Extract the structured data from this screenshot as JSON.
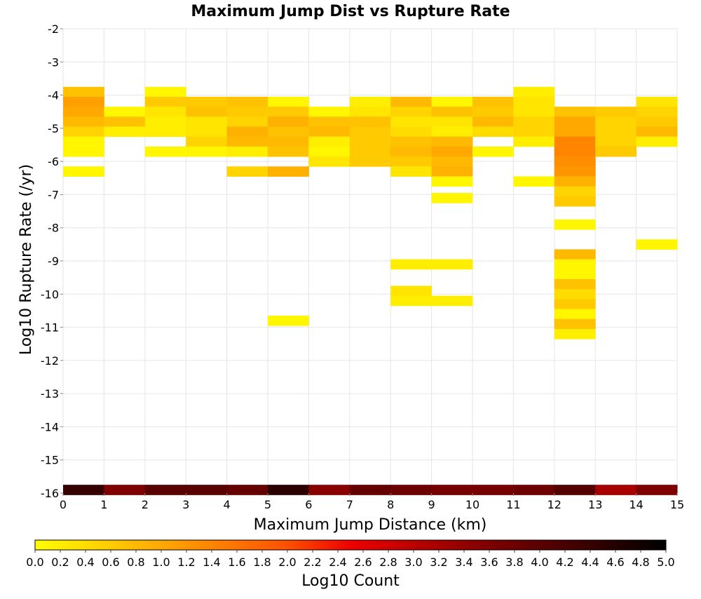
{
  "chart_data": {
    "type": "heatmap",
    "title": "Maximum Jump Dist vs Rupture Rate",
    "xlabel": "Maximum Jump Distance (km)",
    "ylabel": "Log10 Rupture Rate (/yr)",
    "xlim": [
      0,
      15
    ],
    "ylim": [
      -16,
      -2
    ],
    "x_ticks": [
      "0",
      "1",
      "2",
      "3",
      "4",
      "5",
      "6",
      "7",
      "8",
      "9",
      "10",
      "11",
      "12",
      "13",
      "14",
      "15"
    ],
    "y_ticks": [
      "-2",
      "-3",
      "-4",
      "-5",
      "-6",
      "-7",
      "-8",
      "-9",
      "-10",
      "-11",
      "-12",
      "-13",
      "-14",
      "-15",
      "-16"
    ],
    "x_bin_width": 1,
    "y_bin_height": 0.3,
    "grid": true,
    "colorbar": {
      "label": "Log10 Count",
      "range": [
        0,
        5
      ],
      "ticks": [
        "0.0",
        "0.2",
        "0.4",
        "0.6",
        "0.8",
        "1.0",
        "1.2",
        "1.4",
        "1.6",
        "1.8",
        "2.0",
        "2.2",
        "2.4",
        "2.6",
        "2.8",
        "3.0",
        "3.2",
        "3.4",
        "3.6",
        "3.8",
        "4.0",
        "4.2",
        "4.4",
        "4.6",
        "4.8",
        "5.0"
      ],
      "colors": [
        "#ffff00",
        "#ffa800",
        "#ff5000",
        "#ee0000",
        "#880000",
        "#000000"
      ],
      "placement": "bottom"
    },
    "cells": [
      {
        "x": 0,
        "y": -3.9,
        "v": 0.7
      },
      {
        "x": 0,
        "y": -4.2,
        "v": 1.1
      },
      {
        "x": 0,
        "y": -4.5,
        "v": 1.0
      },
      {
        "x": 0,
        "y": -4.8,
        "v": 0.8
      },
      {
        "x": 0,
        "y": -5.1,
        "v": 0.5
      },
      {
        "x": 0,
        "y": -5.4,
        "v": 0.1
      },
      {
        "x": 0,
        "y": -5.7,
        "v": 0.1
      },
      {
        "x": 0,
        "y": -6.3,
        "v": 0.1
      },
      {
        "x": 1,
        "y": -4.5,
        "v": 0.1
      },
      {
        "x": 1,
        "y": -4.8,
        "v": 0.7
      },
      {
        "x": 1,
        "y": -5.1,
        "v": 0.2
      },
      {
        "x": 2,
        "y": -3.9,
        "v": 0.1
      },
      {
        "x": 2,
        "y": -4.2,
        "v": 0.6
      },
      {
        "x": 2,
        "y": -4.5,
        "v": 0.3
      },
      {
        "x": 2,
        "y": -4.8,
        "v": 0.2
      },
      {
        "x": 2,
        "y": -5.1,
        "v": 0.2
      },
      {
        "x": 2,
        "y": -5.7,
        "v": 0.1
      },
      {
        "x": 3,
        "y": -4.2,
        "v": 0.6
      },
      {
        "x": 3,
        "y": -4.5,
        "v": 0.7
      },
      {
        "x": 3,
        "y": -4.8,
        "v": 0.3
      },
      {
        "x": 3,
        "y": -5.1,
        "v": 0.3
      },
      {
        "x": 3,
        "y": -5.4,
        "v": 0.5
      },
      {
        "x": 3,
        "y": -5.7,
        "v": 0.1
      },
      {
        "x": 4,
        "y": -4.2,
        "v": 0.7
      },
      {
        "x": 4,
        "y": -4.5,
        "v": 0.6
      },
      {
        "x": 4,
        "y": -4.8,
        "v": 0.5
      },
      {
        "x": 4,
        "y": -5.1,
        "v": 0.9
      },
      {
        "x": 4,
        "y": -5.4,
        "v": 0.8
      },
      {
        "x": 4,
        "y": -5.7,
        "v": 0.2
      },
      {
        "x": 4,
        "y": -6.3,
        "v": 0.5
      },
      {
        "x": 5,
        "y": -4.2,
        "v": 0.1
      },
      {
        "x": 5,
        "y": -4.5,
        "v": 0.6
      },
      {
        "x": 5,
        "y": -4.8,
        "v": 0.9
      },
      {
        "x": 5,
        "y": -5.1,
        "v": 0.7
      },
      {
        "x": 5,
        "y": -5.4,
        "v": 0.8
      },
      {
        "x": 5,
        "y": -5.7,
        "v": 0.7
      },
      {
        "x": 5,
        "y": -6.3,
        "v": 0.9
      },
      {
        "x": 5,
        "y": -10.8,
        "v": 0.1
      },
      {
        "x": 6,
        "y": -4.5,
        "v": 0.1
      },
      {
        "x": 6,
        "y": -4.8,
        "v": 0.7
      },
      {
        "x": 6,
        "y": -5.1,
        "v": 0.8
      },
      {
        "x": 6,
        "y": -5.4,
        "v": 0.2
      },
      {
        "x": 6,
        "y": -5.7,
        "v": 0.1
      },
      {
        "x": 6,
        "y": -6.0,
        "v": 0.3
      },
      {
        "x": 7,
        "y": -4.2,
        "v": 0.2
      },
      {
        "x": 7,
        "y": -4.5,
        "v": 0.3
      },
      {
        "x": 7,
        "y": -4.8,
        "v": 0.7
      },
      {
        "x": 7,
        "y": -5.1,
        "v": 0.6
      },
      {
        "x": 7,
        "y": -5.4,
        "v": 0.6
      },
      {
        "x": 7,
        "y": -5.7,
        "v": 0.6
      },
      {
        "x": 7,
        "y": -6.0,
        "v": 0.6
      },
      {
        "x": 8,
        "y": -4.2,
        "v": 0.8
      },
      {
        "x": 8,
        "y": -4.5,
        "v": 0.5
      },
      {
        "x": 8,
        "y": -4.8,
        "v": 0.3
      },
      {
        "x": 8,
        "y": -5.1,
        "v": 0.4
      },
      {
        "x": 8,
        "y": -5.4,
        "v": 0.7
      },
      {
        "x": 8,
        "y": -5.7,
        "v": 0.8
      },
      {
        "x": 8,
        "y": -6.0,
        "v": 0.6
      },
      {
        "x": 8,
        "y": -6.3,
        "v": 0.3
      },
      {
        "x": 8,
        "y": -9.1,
        "v": 0.2
      },
      {
        "x": 8,
        "y": -9.9,
        "v": 0.3
      },
      {
        "x": 8,
        "y": -10.2,
        "v": 0.2
      },
      {
        "x": 9,
        "y": -4.2,
        "v": 0.1
      },
      {
        "x": 9,
        "y": -4.5,
        "v": 0.7
      },
      {
        "x": 9,
        "y": -4.8,
        "v": 0.3
      },
      {
        "x": 9,
        "y": -5.1,
        "v": 0.2
      },
      {
        "x": 9,
        "y": -5.4,
        "v": 0.8
      },
      {
        "x": 9,
        "y": -5.7,
        "v": 1.0
      },
      {
        "x": 9,
        "y": -6.0,
        "v": 0.8
      },
      {
        "x": 9,
        "y": -6.3,
        "v": 0.9
      },
      {
        "x": 9,
        "y": -6.6,
        "v": 0.1
      },
      {
        "x": 9,
        "y": -7.1,
        "v": 0.1
      },
      {
        "x": 9,
        "y": -9.1,
        "v": 0.2
      },
      {
        "x": 9,
        "y": -10.2,
        "v": 0.2
      },
      {
        "x": 10,
        "y": -4.2,
        "v": 0.7
      },
      {
        "x": 10,
        "y": -4.5,
        "v": 0.6
      },
      {
        "x": 10,
        "y": -4.8,
        "v": 0.8
      },
      {
        "x": 10,
        "y": -5.1,
        "v": 0.4
      },
      {
        "x": 10,
        "y": -5.7,
        "v": 0.1
      },
      {
        "x": 11,
        "y": -3.9,
        "v": 0.2
      },
      {
        "x": 11,
        "y": -4.2,
        "v": 0.3
      },
      {
        "x": 11,
        "y": -4.5,
        "v": 0.3
      },
      {
        "x": 11,
        "y": -4.8,
        "v": 0.5
      },
      {
        "x": 11,
        "y": -5.1,
        "v": 0.5
      },
      {
        "x": 11,
        "y": -5.4,
        "v": 0.2
      },
      {
        "x": 11,
        "y": -6.6,
        "v": 0.1
      },
      {
        "x": 12,
        "y": -4.5,
        "v": 0.7
      },
      {
        "x": 12,
        "y": -4.8,
        "v": 1.0
      },
      {
        "x": 12,
        "y": -5.1,
        "v": 1.0
      },
      {
        "x": 12,
        "y": -5.4,
        "v": 1.4
      },
      {
        "x": 12,
        "y": -5.7,
        "v": 1.4
      },
      {
        "x": 12,
        "y": -6.0,
        "v": 1.3
      },
      {
        "x": 12,
        "y": -6.3,
        "v": 1.2
      },
      {
        "x": 12,
        "y": -6.6,
        "v": 0.9
      },
      {
        "x": 12,
        "y": -6.9,
        "v": 0.5
      },
      {
        "x": 12,
        "y": -7.2,
        "v": 0.6
      },
      {
        "x": 12,
        "y": -7.9,
        "v": 0.1
      },
      {
        "x": 12,
        "y": -8.8,
        "v": 0.8
      },
      {
        "x": 12,
        "y": -9.1,
        "v": 0.1
      },
      {
        "x": 12,
        "y": -9.4,
        "v": 0.1
      },
      {
        "x": 12,
        "y": -9.7,
        "v": 0.7
      },
      {
        "x": 12,
        "y": -10.0,
        "v": 0.4
      },
      {
        "x": 12,
        "y": -10.3,
        "v": 0.6
      },
      {
        "x": 12,
        "y": -10.6,
        "v": 0.1
      },
      {
        "x": 12,
        "y": -10.9,
        "v": 0.7
      },
      {
        "x": 12,
        "y": -11.2,
        "v": 0.2
      },
      {
        "x": 13,
        "y": -4.5,
        "v": 0.6
      },
      {
        "x": 13,
        "y": -4.8,
        "v": 0.5
      },
      {
        "x": 13,
        "y": -5.1,
        "v": 0.5
      },
      {
        "x": 13,
        "y": -5.4,
        "v": 0.5
      },
      {
        "x": 13,
        "y": -5.7,
        "v": 0.6
      },
      {
        "x": 14,
        "y": -4.2,
        "v": 0.3
      },
      {
        "x": 14,
        "y": -4.5,
        "v": 0.5
      },
      {
        "x": 14,
        "y": -4.8,
        "v": 0.6
      },
      {
        "x": 14,
        "y": -5.1,
        "v": 0.8
      },
      {
        "x": 14,
        "y": -5.4,
        "v": 0.2
      },
      {
        "x": 14,
        "y": -8.5,
        "v": 0.1
      },
      {
        "x": 0,
        "y": -15.9,
        "v": 4.4
      },
      {
        "x": 1,
        "y": -15.9,
        "v": 3.6
      },
      {
        "x": 2,
        "y": -15.9,
        "v": 4.0
      },
      {
        "x": 3,
        "y": -15.9,
        "v": 4.0
      },
      {
        "x": 4,
        "y": -15.9,
        "v": 3.9
      },
      {
        "x": 5,
        "y": -15.9,
        "v": 4.5
      },
      {
        "x": 6,
        "y": -15.9,
        "v": 3.5
      },
      {
        "x": 7,
        "y": -15.9,
        "v": 3.9
      },
      {
        "x": 8,
        "y": -15.9,
        "v": 3.8
      },
      {
        "x": 9,
        "y": -15.9,
        "v": 3.7
      },
      {
        "x": 10,
        "y": -15.9,
        "v": 3.7
      },
      {
        "x": 11,
        "y": -15.9,
        "v": 3.8
      },
      {
        "x": 12,
        "y": -15.9,
        "v": 4.1
      },
      {
        "x": 13,
        "y": -15.9,
        "v": 3.2
      },
      {
        "x": 14,
        "y": -15.9,
        "v": 3.6
      }
    ]
  }
}
